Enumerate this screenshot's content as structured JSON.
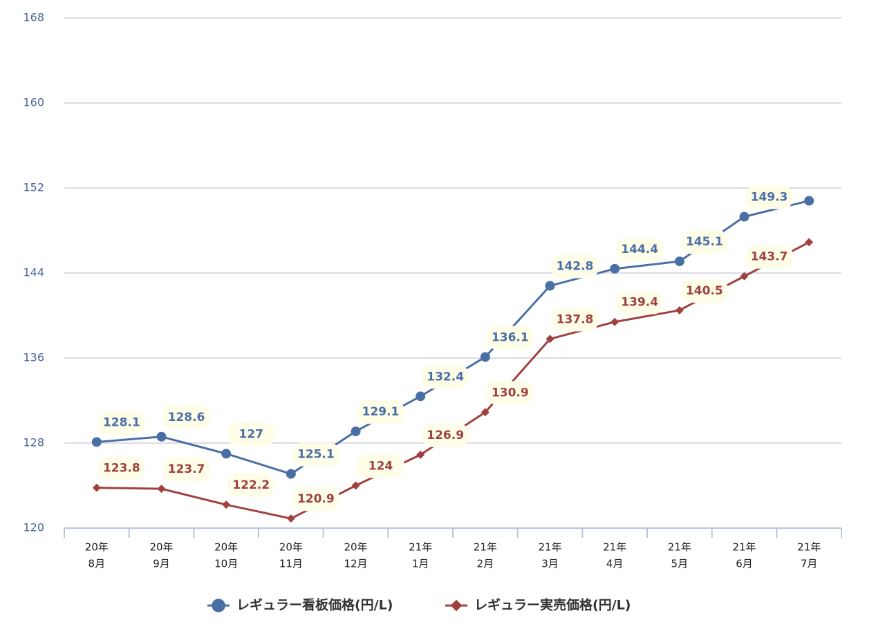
{
  "chart_data": {
    "type": "line",
    "categories": [
      [
        "20年",
        "8月"
      ],
      [
        "20年",
        "9月"
      ],
      [
        "20年",
        "10月"
      ],
      [
        "20年",
        "11月"
      ],
      [
        "20年",
        "12月"
      ],
      [
        "21年",
        "1月"
      ],
      [
        "21年",
        "2月"
      ],
      [
        "21年",
        "3月"
      ],
      [
        "21年",
        "4月"
      ],
      [
        "21年",
        "5月"
      ],
      [
        "21年",
        "6月"
      ],
      [
        "21年",
        "7月"
      ]
    ],
    "series": [
      {
        "name": "レギュラー看板価格(円/L)",
        "color": "#4a6fa5",
        "marker": "circle",
        "values": [
          128.1,
          128.6,
          127,
          125.1,
          129.1,
          132.4,
          136.1,
          142.8,
          144.4,
          145.1,
          149.3,
          150.8
        ],
        "value_labels": [
          "128.1",
          "128.6",
          "127",
          "125.1",
          "129.1",
          "132.4",
          "136.1",
          "142.8",
          "144.4",
          "145.1",
          "149.3",
          null
        ]
      },
      {
        "name": "レギュラー実売価格(円/L)",
        "color": "#a0413f",
        "marker": "diamond",
        "values": [
          123.8,
          123.7,
          122.2,
          120.9,
          124,
          126.9,
          130.9,
          137.8,
          139.4,
          140.5,
          143.7,
          146.9
        ],
        "value_labels": [
          "123.8",
          "123.7",
          "122.2",
          "120.9",
          "124",
          "126.9",
          "130.9",
          "137.8",
          "139.4",
          "140.5",
          "143.7",
          null
        ]
      }
    ],
    "ylim": [
      120,
      168
    ],
    "yticks": [
      120,
      128,
      136,
      144,
      152,
      160,
      168
    ],
    "grid": true,
    "legend": "bottom"
  }
}
